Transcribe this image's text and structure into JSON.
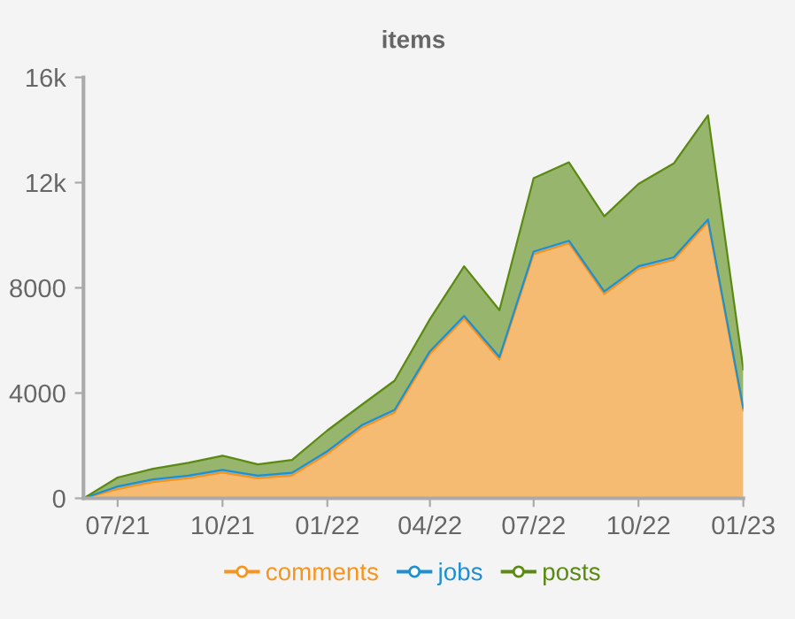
{
  "chart_data": {
    "type": "area",
    "title": "items",
    "stacked": true,
    "x": [
      "2021-06",
      "2021-07",
      "2021-08",
      "2021-09",
      "2021-10",
      "2021-11",
      "2021-12",
      "2022-01",
      "2022-02",
      "2022-03",
      "2022-04",
      "2022-05",
      "2022-06",
      "2022-07",
      "2022-08",
      "2022-09",
      "2022-10",
      "2022-11",
      "2022-12",
      "2023-01"
    ],
    "series": [
      {
        "name": "comments",
        "color": "#f7941d",
        "values": [
          0,
          350,
          620,
          760,
          980,
          760,
          870,
          1690,
          2700,
          3260,
          5490,
          6830,
          5270,
          9280,
          9690,
          7760,
          8720,
          9060,
          10500,
          3330
        ]
      },
      {
        "name": "jobs",
        "color": "#1f8fd0",
        "values": [
          0,
          100,
          100,
          100,
          100,
          100,
          100,
          100,
          100,
          100,
          100,
          100,
          100,
          100,
          100,
          100,
          100,
          100,
          100,
          100
        ]
      },
      {
        "name": "posts",
        "color": "#5a8a12",
        "values": [
          0,
          340,
          400,
          490,
          540,
          430,
          490,
          790,
          780,
          1110,
          1220,
          1890,
          1780,
          2790,
          2980,
          2860,
          3130,
          3570,
          3960,
          1470
        ]
      }
    ],
    "xlim": [
      "2021-06",
      "2023-01"
    ],
    "xticks": [
      {
        "value": "2021-07",
        "label": "07/21"
      },
      {
        "value": "2021-10",
        "label": "10/21"
      },
      {
        "value": "2022-01",
        "label": "01/22"
      },
      {
        "value": "2022-04",
        "label": "04/22"
      },
      {
        "value": "2022-07",
        "label": "07/22"
      },
      {
        "value": "2022-10",
        "label": "10/22"
      },
      {
        "value": "2023-01",
        "label": "01/23"
      }
    ],
    "ylim": [
      0,
      16000
    ],
    "yticks": [
      0,
      4000,
      8000,
      {
        "value": 12000,
        "label": "12k"
      },
      {
        "value": 16000,
        "label": "16k"
      }
    ],
    "grid": false,
    "legend": "bottom"
  }
}
